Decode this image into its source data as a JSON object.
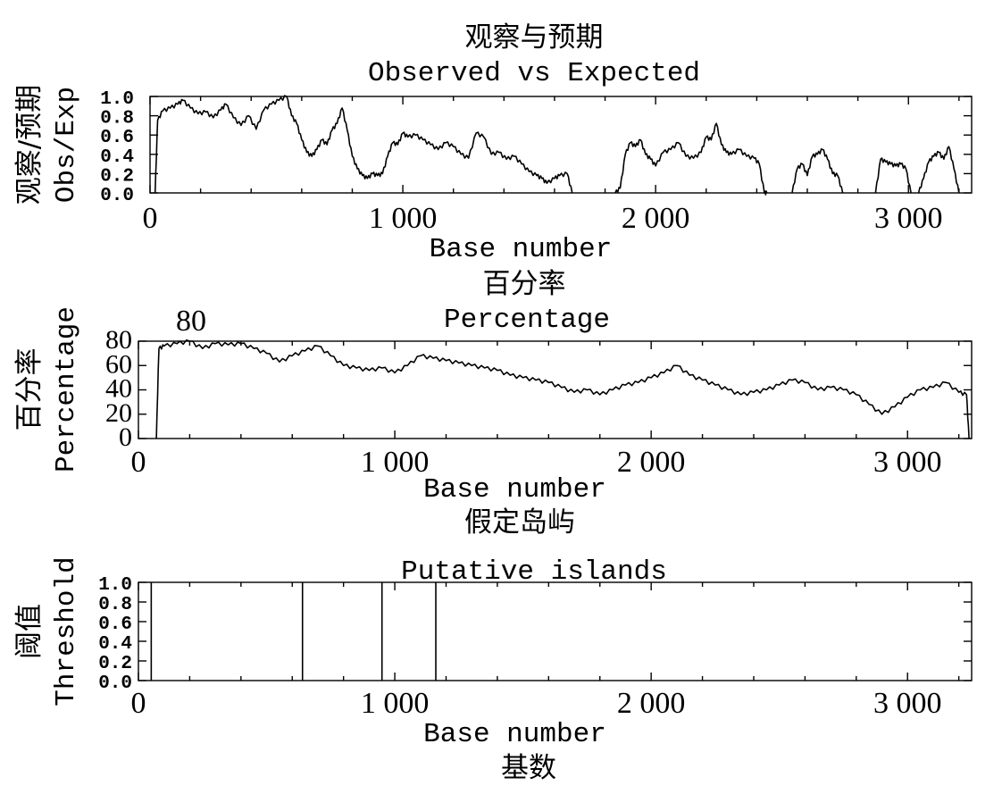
{
  "chart_data": [
    {
      "type": "line",
      "title": "观察与预期",
      "subtitle": "Observed vs Expected",
      "xlabel": "Base number",
      "ylabel": "观察/预期",
      "ylabel_en": "Obs/Exp",
      "xlim": [
        0,
        3250
      ],
      "ylim": [
        0,
        1
      ],
      "xticks": [
        0,
        1000,
        2000,
        3000
      ],
      "xtick_labels": [
        "0",
        "1 000",
        "2 000",
        "3 000"
      ],
      "yticks": [
        0,
        0.2,
        0.4,
        0.6,
        0.8,
        1.0
      ],
      "ytick_labels": [
        "0.0",
        "0.2",
        "0.4",
        "0.6",
        "0.8",
        "1.0"
      ],
      "series": [
        {
          "x": [
            20,
            30,
            50,
            80,
            110,
            130,
            160,
            190,
            220,
            250,
            280,
            300,
            330,
            360,
            390,
            420,
            450,
            480,
            510,
            540,
            560,
            580,
            600,
            620,
            640,
            660,
            680,
            700,
            720,
            740,
            760,
            780,
            800,
            820,
            840,
            860,
            880,
            900,
            920,
            940,
            960,
            980,
            1000,
            1020,
            1050,
            1080,
            1110,
            1140,
            1170,
            1200,
            1230,
            1260,
            1290,
            1320,
            1350,
            1380,
            1410,
            1440,
            1470,
            1500,
            1530,
            1550,
            1570,
            1600,
            1620,
            1650,
            1670
          ],
          "y": [
            0.0,
            0.75,
            0.85,
            0.88,
            0.92,
            0.96,
            0.88,
            0.82,
            0.84,
            0.78,
            0.86,
            0.92,
            0.78,
            0.7,
            0.8,
            0.66,
            0.86,
            0.92,
            0.96,
            1.0,
            0.8,
            0.72,
            0.55,
            0.42,
            0.38,
            0.45,
            0.55,
            0.5,
            0.65,
            0.72,
            0.88,
            0.65,
            0.38,
            0.25,
            0.18,
            0.15,
            0.2,
            0.18,
            0.2,
            0.38,
            0.52,
            0.5,
            0.62,
            0.58,
            0.6,
            0.55,
            0.5,
            0.45,
            0.52,
            0.48,
            0.4,
            0.36,
            0.62,
            0.58,
            0.4,
            0.42,
            0.35,
            0.38,
            0.3,
            0.22,
            0.18,
            0.15,
            0.1,
            0.15,
            0.18,
            0.2,
            0.0
          ]
        },
        {
          "x": [
            1840,
            1860,
            1880,
            1900,
            1920,
            1940,
            1960,
            1980,
            2000,
            2030,
            2060,
            2090,
            2120,
            2150,
            2180,
            2200,
            2220,
            2240,
            2260,
            2280,
            2300,
            2330,
            2360,
            2390,
            2410,
            2430,
            2440
          ],
          "y": [
            0.0,
            0.05,
            0.4,
            0.52,
            0.48,
            0.55,
            0.4,
            0.35,
            0.28,
            0.42,
            0.45,
            0.52,
            0.38,
            0.36,
            0.42,
            0.58,
            0.55,
            0.72,
            0.5,
            0.42,
            0.4,
            0.45,
            0.38,
            0.36,
            0.3,
            0.0,
            0.0
          ]
        },
        {
          "x": [
            2540,
            2560,
            2580,
            2600,
            2620,
            2640,
            2660,
            2680,
            2700,
            2720,
            2740
          ],
          "y": [
            0.0,
            0.25,
            0.3,
            0.18,
            0.38,
            0.4,
            0.45,
            0.35,
            0.2,
            0.18,
            0.0
          ]
        },
        {
          "x": [
            2870,
            2890,
            2910,
            2930,
            2950,
            2970,
            2990,
            3010
          ],
          "y": [
            0.0,
            0.35,
            0.32,
            0.3,
            0.28,
            0.3,
            0.25,
            0.0
          ]
        },
        {
          "x": [
            3040,
            3060,
            3080,
            3100,
            3120,
            3140,
            3160,
            3180,
            3200
          ],
          "y": [
            0.0,
            0.15,
            0.32,
            0.38,
            0.42,
            0.35,
            0.48,
            0.25,
            0.0
          ]
        }
      ]
    },
    {
      "type": "line",
      "title": "百分率",
      "subtitle": "Percentage",
      "xlabel": "Base number",
      "ylabel": "百分率",
      "ylabel_en": "Percentage",
      "annotation": "80",
      "xlim": [
        0,
        3250
      ],
      "ylim": [
        0,
        80
      ],
      "xticks": [
        0,
        1000,
        2000,
        3000
      ],
      "xtick_labels": [
        "0",
        "1 000",
        "2 000",
        "3 000"
      ],
      "yticks": [
        0,
        20,
        40,
        60,
        80
      ],
      "ytick_labels": [
        "0",
        "20",
        "40",
        "60",
        "80"
      ],
      "series": [
        {
          "x": [
            70,
            80,
            100,
            150,
            200,
            250,
            300,
            350,
            400,
            450,
            500,
            550,
            600,
            650,
            700,
            750,
            800,
            850,
            900,
            950,
            1000,
            1050,
            1100,
            1150,
            1200,
            1250,
            1300,
            1350,
            1400,
            1450,
            1500,
            1550,
            1600,
            1650,
            1700,
            1750,
            1800,
            1850,
            1900,
            1950,
            2000,
            2050,
            2100,
            2150,
            2200,
            2250,
            2300,
            2350,
            2400,
            2450,
            2500,
            2550,
            2600,
            2650,
            2700,
            2750,
            2800,
            2850,
            2900,
            2950,
            3000,
            3050,
            3100,
            3150,
            3200,
            3230,
            3240
          ],
          "y": [
            0,
            74,
            76,
            78,
            80,
            74,
            78,
            77,
            78,
            74,
            70,
            63,
            68,
            72,
            76,
            68,
            60,
            58,
            56,
            58,
            54,
            60,
            68,
            66,
            64,
            62,
            60,
            58,
            56,
            52,
            50,
            48,
            46,
            42,
            38,
            40,
            36,
            40,
            44,
            46,
            50,
            54,
            60,
            52,
            48,
            44,
            40,
            36,
            38,
            40,
            44,
            48,
            46,
            40,
            42,
            40,
            36,
            28,
            20,
            26,
            34,
            40,
            42,
            46,
            38,
            36,
            0
          ]
        }
      ]
    },
    {
      "type": "bar",
      "title": "假定岛屿",
      "subtitle": "Putative islands",
      "xlabel": "Base number",
      "xlabel_cn": "基数",
      "ylabel": "阈值",
      "ylabel_en": "Threshold",
      "xlim": [
        0,
        3250
      ],
      "ylim": [
        0,
        1
      ],
      "xticks": [
        0,
        1000,
        2000,
        3000
      ],
      "xtick_labels": [
        "0",
        "1 000",
        "2 000",
        "3 000"
      ],
      "yticks": [
        0,
        0.2,
        0.4,
        0.6,
        0.8,
        1.0
      ],
      "ytick_labels": [
        "0.0",
        "0.2",
        "0.4",
        "0.6",
        "0.8",
        "1.0"
      ],
      "bars_x": [
        50,
        640,
        950,
        1160
      ],
      "bars_y": [
        1,
        1,
        1,
        1
      ]
    }
  ]
}
